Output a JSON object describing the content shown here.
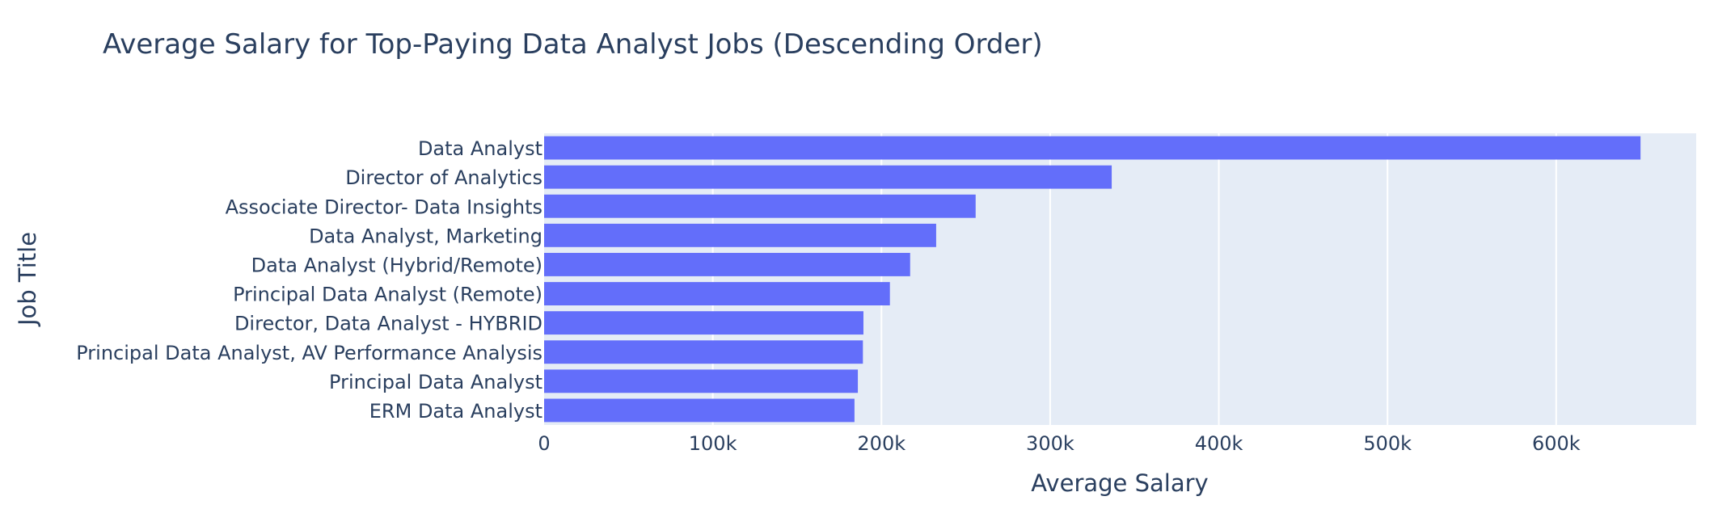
{
  "chart_data": {
    "type": "bar",
    "orientation": "horizontal",
    "title": "Average Salary for Top-Paying Data Analyst Jobs (Descending Order)",
    "xlabel": "Average Salary",
    "ylabel": "Job Title",
    "xlim": [
      0,
      683000
    ],
    "x_ticks": [
      0,
      100000,
      200000,
      300000,
      400000,
      500000,
      600000
    ],
    "x_tick_labels": [
      "0",
      "100k",
      "200k",
      "300k",
      "400k",
      "500k",
      "600k"
    ],
    "categories": [
      "Data Analyst",
      "Director of Analytics",
      "Associate Director- Data Insights",
      "Data Analyst, Marketing",
      "Data Analyst (Hybrid/Remote)",
      "Principal Data Analyst (Remote)",
      "Director, Data Analyst - HYBRID",
      "Principal Data Analyst, AV Performance Analysis",
      "Principal Data Analyst",
      "ERM Data Analyst"
    ],
    "values": [
      650000,
      336500,
      255830,
      232423,
      217000,
      205000,
      189309,
      189000,
      186000,
      184000
    ],
    "grid": true,
    "colors": {
      "bar": "#636efa",
      "plot_bg": "#e5ecf6",
      "grid": "#ffffff",
      "text": "#2a3f5f"
    }
  }
}
